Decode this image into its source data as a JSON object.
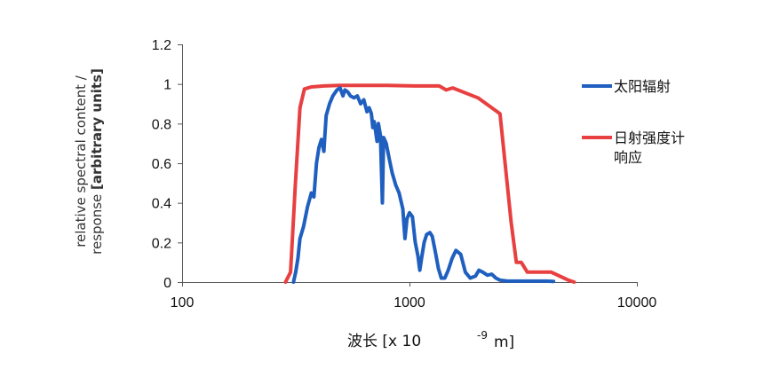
{
  "chart_data": {
    "type": "line",
    "x_scale": "log",
    "xlim": [
      100,
      10000
    ],
    "ylim": [
      0,
      1.2
    ],
    "x_ticks": [
      "100",
      "1000",
      "10000"
    ],
    "y_ticks": [
      "0",
      "0.2",
      "0.4",
      "0.6",
      "0.8",
      "1",
      "1.2"
    ],
    "xlabel": {
      "main": "波长 [x 10",
      "exponent": "-9",
      "unit": "m]"
    },
    "ylabel": {
      "line1": "relative spectral content /",
      "line2_normal": "response ",
      "line2_bold": "[arbitrary units]"
    },
    "grid": false,
    "legend_position": "right",
    "series": [
      {
        "name": "太阳辐射",
        "color": "#1f5fbf",
        "points": [
          [
            309,
            0
          ],
          [
            316,
            0.05
          ],
          [
            323,
            0.12
          ],
          [
            330,
            0.22
          ],
          [
            342,
            0.28
          ],
          [
            356,
            0.38
          ],
          [
            370,
            0.45
          ],
          [
            380,
            0.43
          ],
          [
            390,
            0.6
          ],
          [
            400,
            0.68
          ],
          [
            410,
            0.72
          ],
          [
            420,
            0.66
          ],
          [
            430,
            0.84
          ],
          [
            445,
            0.9
          ],
          [
            460,
            0.94
          ],
          [
            480,
            0.97
          ],
          [
            495,
            0.98
          ],
          [
            510,
            0.94
          ],
          [
            520,
            0.97
          ],
          [
            535,
            0.96
          ],
          [
            550,
            0.94
          ],
          [
            570,
            0.93
          ],
          [
            590,
            0.94
          ],
          [
            610,
            0.9
          ],
          [
            630,
            0.92
          ],
          [
            650,
            0.86
          ],
          [
            665,
            0.88
          ],
          [
            680,
            0.85
          ],
          [
            690,
            0.78
          ],
          [
            700,
            0.81
          ],
          [
            710,
            0.76
          ],
          [
            720,
            0.71
          ],
          [
            730,
            0.8
          ],
          [
            745,
            0.74
          ],
          [
            760,
            0.4
          ],
          [
            770,
            0.73
          ],
          [
            790,
            0.7
          ],
          [
            815,
            0.62
          ],
          [
            840,
            0.55
          ],
          [
            870,
            0.49
          ],
          [
            900,
            0.45
          ],
          [
            935,
            0.37
          ],
          [
            955,
            0.22
          ],
          [
            975,
            0.32
          ],
          [
            1000,
            0.35
          ],
          [
            1030,
            0.33
          ],
          [
            1060,
            0.2
          ],
          [
            1090,
            0.13
          ],
          [
            1110,
            0.06
          ],
          [
            1130,
            0.12
          ],
          [
            1160,
            0.2
          ],
          [
            1190,
            0.24
          ],
          [
            1230,
            0.25
          ],
          [
            1260,
            0.23
          ],
          [
            1300,
            0.15
          ],
          [
            1340,
            0.07
          ],
          [
            1380,
            0.02
          ],
          [
            1430,
            0.02
          ],
          [
            1480,
            0.06
          ],
          [
            1540,
            0.12
          ],
          [
            1600,
            0.16
          ],
          [
            1680,
            0.14
          ],
          [
            1760,
            0.05
          ],
          [
            1850,
            0.02
          ],
          [
            1950,
            0.03
          ],
          [
            2020,
            0.06
          ],
          [
            2100,
            0.05
          ],
          [
            2200,
            0.035
          ],
          [
            2300,
            0.04
          ],
          [
            2400,
            0.02
          ],
          [
            2500,
            0.01
          ],
          [
            2700,
            0.005
          ],
          [
            3000,
            0.005
          ],
          [
            3500,
            0.005
          ],
          [
            4000,
            0.005
          ],
          [
            4300,
            0.003
          ]
        ]
      },
      {
        "name": "日射强度计响应",
        "color": "#e84040",
        "points": [
          [
            285,
            0
          ],
          [
            300,
            0.05
          ],
          [
            315,
            0.5
          ],
          [
            330,
            0.88
          ],
          [
            345,
            0.975
          ],
          [
            370,
            0.985
          ],
          [
            420,
            0.99
          ],
          [
            500,
            0.993
          ],
          [
            800,
            0.993
          ],
          [
            1050,
            0.99
          ],
          [
            1350,
            0.99
          ],
          [
            1450,
            0.97
          ],
          [
            1550,
            0.98
          ],
          [
            2000,
            0.93
          ],
          [
            2500,
            0.85
          ],
          [
            2800,
            0.3
          ],
          [
            2950,
            0.1
          ],
          [
            3100,
            0.1
          ],
          [
            3300,
            0.05
          ],
          [
            4200,
            0.05
          ],
          [
            5000,
            0.01
          ],
          [
            5300,
            0.0
          ]
        ]
      }
    ],
    "legend": {
      "solar": "太阳辐射",
      "pyranometer_line1": "日射强度计",
      "pyranometer_line2": "响应"
    }
  }
}
